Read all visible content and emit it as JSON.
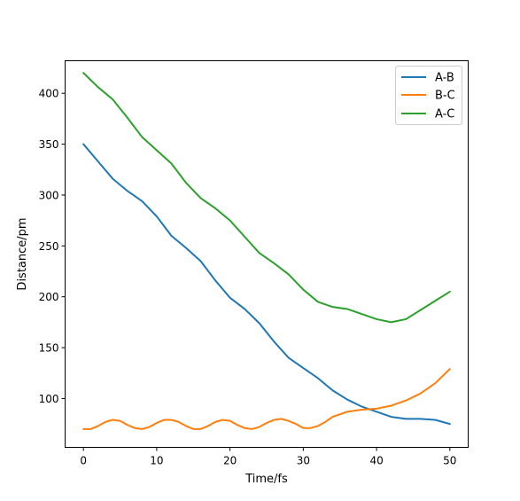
{
  "chart_data": {
    "type": "line",
    "title": "",
    "xlabel": "Time/fs",
    "ylabel": "Distance/pm",
    "xlim": [
      -2.5,
      52.5
    ],
    "ylim": [
      52,
      432
    ],
    "xticks": [
      0,
      10,
      20,
      30,
      40,
      50
    ],
    "yticks": [
      100,
      150,
      200,
      250,
      300,
      350,
      400
    ],
    "grid": false,
    "legend_position": "top-right",
    "series": [
      {
        "name": "A-B",
        "color": "#1f77b4",
        "x": [
          0,
          2,
          4,
          6,
          8,
          10,
          12,
          14,
          16,
          18,
          20,
          22,
          24,
          26,
          28,
          30,
          32,
          34,
          36,
          38,
          40,
          42,
          44,
          46,
          48,
          50
        ],
        "y": [
          350,
          333,
          316,
          304,
          294,
          279,
          260,
          248,
          235,
          216,
          199,
          188,
          174,
          156,
          140,
          130,
          120,
          108,
          99,
          92,
          87,
          82,
          80,
          80,
          79,
          75
        ]
      },
      {
        "name": "B-C",
        "color": "#ff7f0e",
        "x": [
          0,
          1,
          2,
          3,
          4,
          5,
          6,
          7,
          8,
          9,
          10,
          11,
          12,
          13,
          14,
          15,
          16,
          17,
          18,
          19,
          20,
          21,
          22,
          23,
          24,
          25,
          26,
          27,
          28,
          29,
          30,
          31,
          32,
          33,
          34,
          36,
          38,
          40,
          42,
          44,
          46,
          48,
          50
        ],
        "y": [
          70,
          70,
          73,
          77,
          79,
          78,
          74,
          71,
          70,
          72,
          76,
          79,
          79,
          77,
          73,
          70,
          70,
          73,
          77,
          79,
          78,
          74,
          71,
          70,
          72,
          76,
          79,
          80,
          78,
          75,
          71,
          71,
          73,
          77,
          82,
          87,
          89,
          90,
          93,
          98,
          105,
          115,
          129
        ]
      },
      {
        "name": "A-C",
        "color": "#2ca02c",
        "x": [
          0,
          2,
          4,
          6,
          8,
          10,
          12,
          14,
          16,
          18,
          20,
          22,
          24,
          26,
          28,
          30,
          32,
          34,
          36,
          38,
          40,
          42,
          44,
          46,
          48,
          50
        ],
        "y": [
          420,
          406,
          394,
          376,
          357,
          344,
          331,
          312,
          297,
          287,
          275,
          259,
          243,
          233,
          222,
          207,
          195,
          190,
          188,
          183,
          178,
          175,
          178,
          187,
          196,
          205
        ]
      }
    ]
  }
}
